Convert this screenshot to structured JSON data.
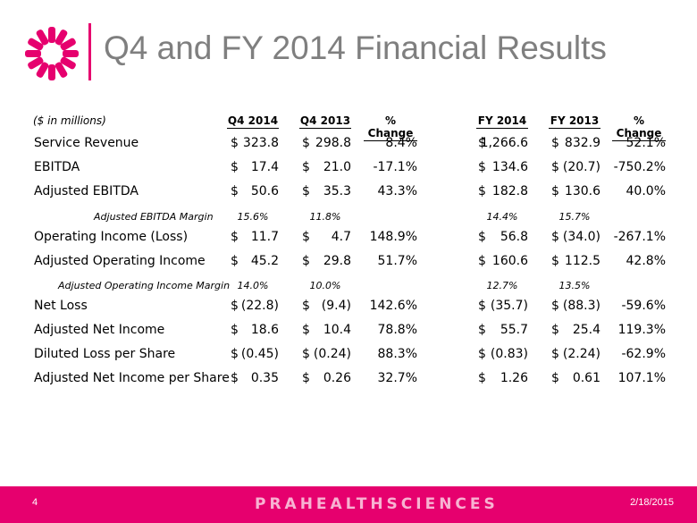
{
  "slide": {
    "title": "Q4 and FY 2014 Financial Results",
    "page_number": "4",
    "date": "2/18/2015",
    "brand": "PRAHEALTHSCIENCES",
    "accent_color": "#e6006e",
    "logo_icon": "pink-starburst-logo-icon"
  },
  "table": {
    "units_label": "($ in millions)",
    "headers": [
      "Q4 2014",
      "Q4 2013",
      "% Change",
      "FY 2014",
      "FY 2013",
      "% Change"
    ],
    "rows": [
      {
        "label": "Service Revenue",
        "cur": [
          "$",
          "$",
          "$",
          "$"
        ],
        "vals": [
          "323.8",
          "298.8",
          "8.4%",
          "1,266.6",
          "832.9",
          "52.1%"
        ]
      },
      {
        "label": "EBITDA",
        "cur": [
          "$",
          "$",
          "$",
          "$"
        ],
        "vals": [
          "17.4",
          "21.0",
          "-17.1%",
          "134.6",
          "(20.7)",
          "-750.2%"
        ]
      },
      {
        "label": "Adjusted EBITDA",
        "cur": [
          "$",
          "$",
          "$",
          "$"
        ],
        "vals": [
          "50.6",
          "35.3",
          "43.3%",
          "182.8",
          "130.6",
          "40.0%"
        ]
      },
      {
        "label": "Adjusted EBITDA Margin",
        "sub": true,
        "vals": [
          "15.6%",
          "11.8%",
          "",
          "14.4%",
          "15.7%",
          ""
        ]
      },
      {
        "label": "Operating Income (Loss)",
        "cur": [
          "$",
          "$",
          "$",
          "$"
        ],
        "vals": [
          "11.7",
          "4.7",
          "148.9%",
          "56.8",
          "(34.0)",
          "-267.1%"
        ]
      },
      {
        "label": "Adjusted Operating Income",
        "cur": [
          "$",
          "$",
          "$",
          "$"
        ],
        "vals": [
          "45.2",
          "29.8",
          "51.7%",
          "160.6",
          "112.5",
          "42.8%"
        ]
      },
      {
        "label": "Adjusted Operating Income Margin",
        "sub": true,
        "vals": [
          "14.0%",
          "10.0%",
          "",
          "12.7%",
          "13.5%",
          ""
        ]
      },
      {
        "label": "Net Loss",
        "cur": [
          "$",
          "$",
          "$",
          "$"
        ],
        "vals": [
          "(22.8)",
          "(9.4)",
          "142.6%",
          "(35.7)",
          "(88.3)",
          "-59.6%"
        ]
      },
      {
        "label": "Adjusted Net Income",
        "cur": [
          "$",
          "$",
          "$",
          "$"
        ],
        "vals": [
          "18.6",
          "10.4",
          "78.8%",
          "55.7",
          "25.4",
          "119.3%"
        ]
      },
      {
        "label": "Diluted Loss per Share",
        "cur": [
          "$",
          "$",
          "$",
          "$"
        ],
        "vals": [
          "(0.45)",
          "(0.24)",
          "88.3%",
          "(0.83)",
          "(2.24)",
          "-62.9%"
        ]
      },
      {
        "label": "Adjusted Net Income per Share",
        "cur": [
          "$",
          "$",
          "$",
          "$"
        ],
        "vals": [
          "0.35",
          "0.26",
          "32.7%",
          "1.26",
          "0.61",
          "107.1%"
        ]
      }
    ]
  }
}
